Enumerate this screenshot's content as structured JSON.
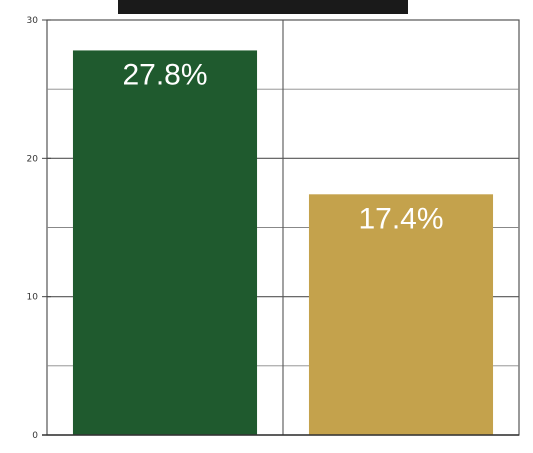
{
  "chart_data": {
    "type": "bar",
    "title": "",
    "xlabel": "",
    "ylabel": "",
    "categories": [
      "",
      ""
    ],
    "values": [
      27.8,
      17.4
    ],
    "data_labels": [
      "27.8%",
      "17.4%"
    ],
    "bar_colors": [
      "#1f5a2e",
      "#c4a24c"
    ],
    "ylim": [
      0,
      30
    ],
    "yticks": [
      0,
      10,
      20,
      30
    ],
    "ytick_labels": [
      "0",
      "10",
      "20",
      "30"
    ],
    "grid": true,
    "legend": "none"
  }
}
